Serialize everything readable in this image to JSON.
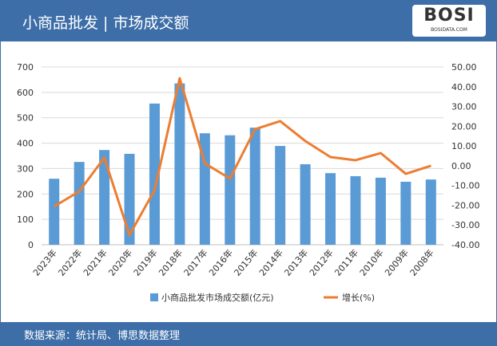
{
  "header": {
    "title": "小商品批发 | 市场成交额",
    "logo_text": "BOSI",
    "logo_sub": "BOSIDATA.COM"
  },
  "footer": {
    "source": "数据来源：统计局、博思数据整理"
  },
  "colors": {
    "bar": "#5b9bd5",
    "line": "#ed7d31",
    "brand": "#3d6ea8"
  },
  "chart_data": {
    "type": "bar+line",
    "categories": [
      "2023年",
      "2022年",
      "2021年",
      "2020年",
      "2019年",
      "2018年",
      "2017年",
      "2016年",
      "2015年",
      "2014年",
      "2013年",
      "2012年",
      "2011年",
      "2010年",
      "2009年",
      "2008年"
    ],
    "series": [
      {
        "name": "小商品批发市场成交额(亿元)",
        "type": "bar",
        "axis": "left",
        "values": [
          260,
          326,
          373,
          358,
          556,
          635,
          439,
          431,
          461,
          389,
          317,
          282,
          270,
          264,
          248,
          257
        ]
      },
      {
        "name": "增长(%)",
        "type": "line",
        "axis": "right",
        "values": [
          -20.6,
          -13,
          4.1,
          -35.1,
          -12.3,
          44.3,
          1.2,
          -6.5,
          18.5,
          22.6,
          12.5,
          4.4,
          2.8,
          6.4,
          -4.1,
          0
        ]
      }
    ],
    "left_axis": {
      "ylim": [
        0,
        700
      ],
      "ticks": [
        "0",
        "100",
        "200",
        "300",
        "400",
        "500",
        "600",
        "700"
      ]
    },
    "right_axis": {
      "ylim": [
        -40,
        50
      ],
      "ticks": [
        "-40.00",
        "-30.00",
        "-20.00",
        "-10.00",
        "0.00",
        "10.00",
        "20.00",
        "30.00",
        "40.00",
        "50.00"
      ]
    },
    "grid": true,
    "legend": "bottom"
  }
}
